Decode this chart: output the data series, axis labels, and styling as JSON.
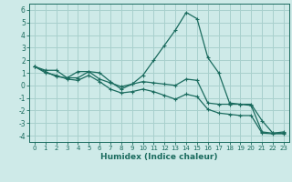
{
  "xlabel": "Humidex (Indice chaleur)",
  "bg_color": "#ceeae8",
  "grid_color": "#a8d0cd",
  "line_color": "#1a6b5e",
  "xlim": [
    -0.5,
    23.5
  ],
  "ylim": [
    -4.5,
    6.5
  ],
  "xticks": [
    0,
    1,
    2,
    3,
    4,
    5,
    6,
    7,
    8,
    9,
    10,
    11,
    12,
    13,
    14,
    15,
    16,
    17,
    18,
    19,
    20,
    21,
    22,
    23
  ],
  "yticks": [
    -4,
    -3,
    -2,
    -1,
    0,
    1,
    2,
    3,
    4,
    5,
    6
  ],
  "series1_x": [
    0,
    1,
    2,
    3,
    4,
    5,
    6,
    7,
    8,
    9,
    10,
    11,
    12,
    13,
    14,
    15,
    16,
    17,
    18,
    19,
    20,
    21,
    22,
    23
  ],
  "series1_y": [
    1.5,
    1.2,
    1.2,
    0.6,
    0.6,
    1.1,
    1.0,
    0.3,
    -0.3,
    0.1,
    0.8,
    2.0,
    3.2,
    4.4,
    5.8,
    5.3,
    2.2,
    1.0,
    -1.4,
    -1.5,
    -1.5,
    -2.8,
    -3.8,
    -3.7
  ],
  "series2_x": [
    0,
    1,
    2,
    3,
    4,
    5,
    6,
    7,
    8,
    9,
    10,
    11,
    12,
    13,
    14,
    15,
    16,
    17,
    18,
    19,
    20,
    21,
    22,
    23
  ],
  "series2_y": [
    1.5,
    1.1,
    0.7,
    0.6,
    1.1,
    1.1,
    0.5,
    0.2,
    -0.1,
    0.1,
    0.3,
    0.2,
    0.1,
    0.0,
    0.5,
    0.4,
    -1.4,
    -1.5,
    -1.5,
    -1.5,
    -1.6,
    -3.7,
    -3.8,
    -3.8
  ],
  "series3_x": [
    0,
    1,
    2,
    3,
    4,
    5,
    6,
    7,
    8,
    9,
    10,
    11,
    12,
    13,
    14,
    15,
    16,
    17,
    18,
    19,
    20,
    21,
    22,
    23
  ],
  "series3_y": [
    1.5,
    1.0,
    0.8,
    0.5,
    0.4,
    0.8,
    0.3,
    -0.3,
    -0.6,
    -0.5,
    -0.3,
    -0.5,
    -0.8,
    -1.1,
    -0.7,
    -0.9,
    -1.9,
    -2.2,
    -2.3,
    -2.4,
    -2.4,
    -3.8,
    -3.85,
    -3.85
  ]
}
